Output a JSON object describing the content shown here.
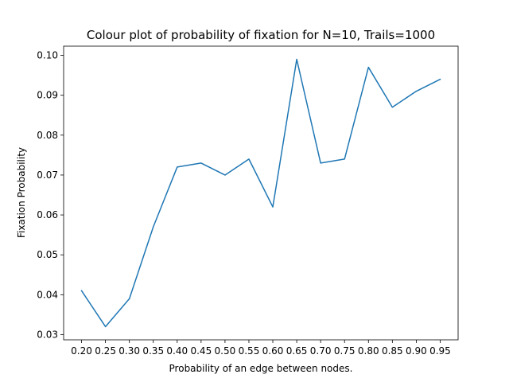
{
  "chart_data": {
    "type": "line",
    "title": "Colour plot of probability of fixation for N=10, Trails=1000",
    "xlabel": "Probability of an edge between nodes.",
    "ylabel": "Fixation Probability",
    "x": [
      0.2,
      0.25,
      0.3,
      0.35,
      0.4,
      0.45,
      0.5,
      0.55,
      0.6,
      0.65,
      0.7,
      0.75,
      0.8,
      0.85,
      0.9,
      0.95
    ],
    "xtick_labels": [
      "0.20",
      "0.25",
      "0.30",
      "0.35",
      "0.40",
      "0.45",
      "0.50",
      "0.55",
      "0.60",
      "0.65",
      "0.70",
      "0.75",
      "0.80",
      "0.85",
      "0.90",
      "0.95"
    ],
    "series": [
      {
        "values": [
          0.041,
          0.032,
          0.039,
          0.057,
          0.072,
          0.073,
          0.07,
          0.074,
          0.062,
          0.099,
          0.073,
          0.074,
          0.097,
          0.087,
          0.091,
          0.094
        ],
        "color": "#1f77b4"
      }
    ],
    "yticks": [
      0.03,
      0.04,
      0.05,
      0.06,
      0.07,
      0.08,
      0.09,
      0.1
    ],
    "ytick_labels": [
      "0.03",
      "0.04",
      "0.05",
      "0.06",
      "0.07",
      "0.08",
      "0.09",
      "0.10"
    ],
    "xlim": [
      0.1625,
      0.9875
    ],
    "ylim": [
      0.0287,
      0.1023
    ],
    "grid": false,
    "legend": "none"
  }
}
